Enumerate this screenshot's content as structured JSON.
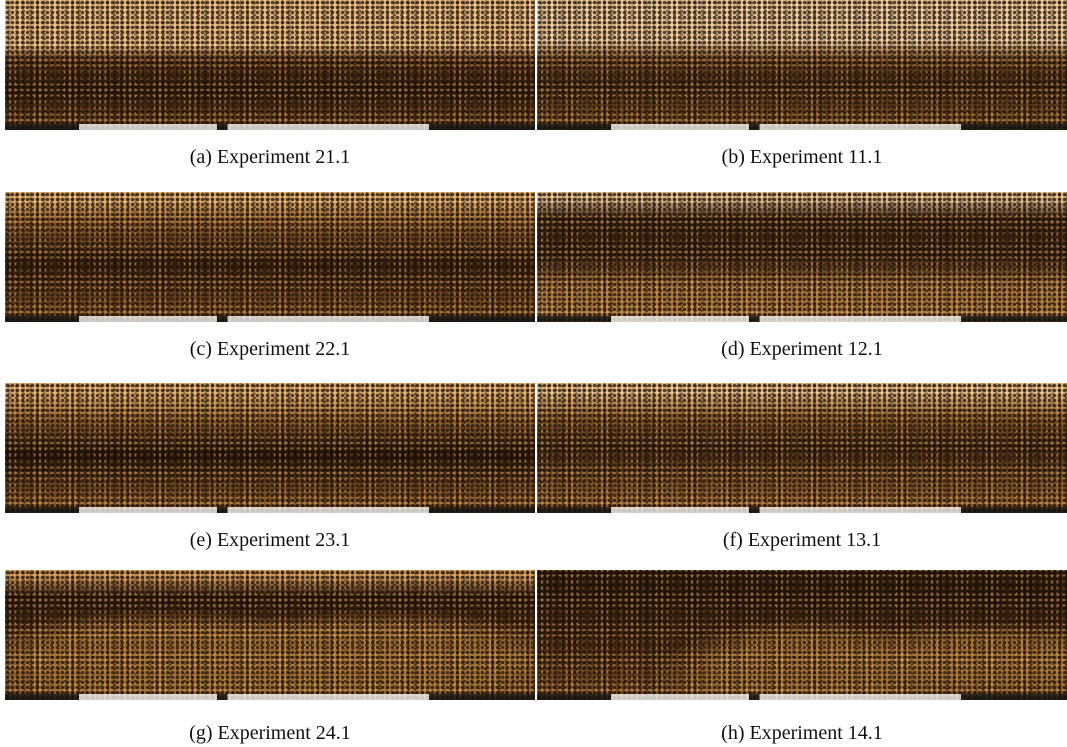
{
  "figures": [
    {
      "label": "(a)",
      "caption": "Experiment 21.1"
    },
    {
      "label": "(b)",
      "caption": "Experiment 11.1"
    },
    {
      "label": "(c)",
      "caption": "Experiment 22.1"
    },
    {
      "label": "(d)",
      "caption": "Experiment 12.1"
    },
    {
      "label": "(e)",
      "caption": "Experiment 23.1"
    },
    {
      "label": "(f)",
      "caption": "Experiment 13.1"
    },
    {
      "label": "(g)",
      "caption": "Experiment 24.1"
    },
    {
      "label": "(h)",
      "caption": "Experiment 14.1"
    }
  ]
}
